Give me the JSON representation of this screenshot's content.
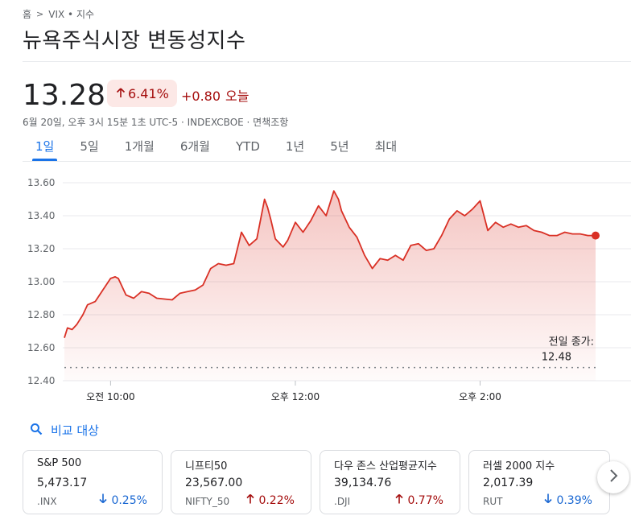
{
  "breadcrumb": {
    "home": "홈",
    "index": "VIX • 지수"
  },
  "title": "뉴욕주식시장 변동성지수",
  "quote": {
    "price": "13.28",
    "percent_change": "6.41%",
    "absolute_change": "+0.80",
    "period_label": "오늘",
    "meta": "6월 20일, 오후 3시 15분 1초 UTC-5 · INDEXCBOE · 면책조항"
  },
  "tabs": [
    "1일",
    "5일",
    "1개월",
    "6개월",
    "YTD",
    "1년",
    "5년",
    "최대"
  ],
  "active_tab": "1일",
  "compare_label": "비교 대상",
  "colors": {
    "down": "#d93025",
    "down_bg": "#fce8e6",
    "accent": "#1a73e8",
    "negative_text": "#a50e0e"
  },
  "chart_data": {
    "type": "area",
    "ylim": [
      12.4,
      13.6
    ],
    "yticks": [
      "13.60",
      "13.40",
      "13.20",
      "13.00",
      "12.80",
      "12.60",
      "12.40"
    ],
    "xlim": [
      "09:30",
      "15:15"
    ],
    "xticks": [
      {
        "label": "오전 10:00",
        "t": "10:00"
      },
      {
        "label": "오후 12:00",
        "t": "12:00"
      },
      {
        "label": "오후 2:00",
        "t": "14:00"
      }
    ],
    "previous_close": {
      "label1": "전일 종가:",
      "label2": "12.48",
      "value": 12.48
    },
    "series": [
      {
        "x": [
          "09:30",
          "09:32",
          "09:35",
          "09:38",
          "09:42",
          "09:45",
          "09:50",
          "09:55",
          "10:00",
          "10:03",
          "10:05",
          "10:10",
          "10:15",
          "10:20",
          "10:25",
          "10:30",
          "10:40",
          "10:45",
          "10:50",
          "10:55",
          "11:00",
          "11:05",
          "11:10",
          "11:15",
          "11:20",
          "11:25",
          "11:30",
          "11:35",
          "11:40",
          "11:42",
          "11:44",
          "11:47",
          "11:50",
          "11:52",
          "11:55",
          "12:00",
          "12:05",
          "12:10",
          "12:15",
          "12:20",
          "12:25",
          "12:28",
          "12:30",
          "12:35",
          "12:40",
          "12:45",
          "12:50",
          "12:55",
          "13:00",
          "13:05",
          "13:10",
          "13:15",
          "13:20",
          "13:25",
          "13:30",
          "13:35",
          "13:40",
          "13:45",
          "13:50",
          "13:55",
          "14:00",
          "14:05",
          "14:10",
          "14:15",
          "14:20",
          "14:25",
          "14:30",
          "14:35",
          "14:40",
          "14:45",
          "14:50",
          "14:55",
          "15:00",
          "15:05",
          "15:10",
          "15:15"
        ],
        "y": [
          12.66,
          12.72,
          12.71,
          12.74,
          12.8,
          12.86,
          12.88,
          12.95,
          13.02,
          13.03,
          13.02,
          12.92,
          12.9,
          12.94,
          12.93,
          12.9,
          12.89,
          12.93,
          12.94,
          12.95,
          12.98,
          13.08,
          13.11,
          13.1,
          13.11,
          13.3,
          13.22,
          13.26,
          13.5,
          13.45,
          13.38,
          13.26,
          13.23,
          13.21,
          13.25,
          13.36,
          13.3,
          13.37,
          13.46,
          13.4,
          13.55,
          13.5,
          13.43,
          13.33,
          13.27,
          13.16,
          13.08,
          13.14,
          13.13,
          13.16,
          13.13,
          13.22,
          13.23,
          13.19,
          13.2,
          13.28,
          13.38,
          13.43,
          13.4,
          13.44,
          13.49,
          13.31,
          13.36,
          13.33,
          13.35,
          13.33,
          13.34,
          13.31,
          13.3,
          13.28,
          13.28,
          13.3,
          13.29,
          13.29,
          13.28,
          13.28
        ]
      }
    ]
  },
  "cards": [
    {
      "name": "S&P 500",
      "value": "5,473.17",
      "ticker": ".INX",
      "change": "0.25%",
      "direction": "down"
    },
    {
      "name": "니프티50",
      "value": "23,567.00",
      "ticker": "NIFTY_50",
      "change": "0.22%",
      "direction": "up"
    },
    {
      "name": "다우 존스 산업평균지수",
      "value": "39,134.76",
      "ticker": ".DJI",
      "change": "0.77%",
      "direction": "up"
    },
    {
      "name": "러셀 2000 지수",
      "value": "2,017.39",
      "ticker": "RUT",
      "change": "0.39%",
      "direction": "down"
    }
  ]
}
